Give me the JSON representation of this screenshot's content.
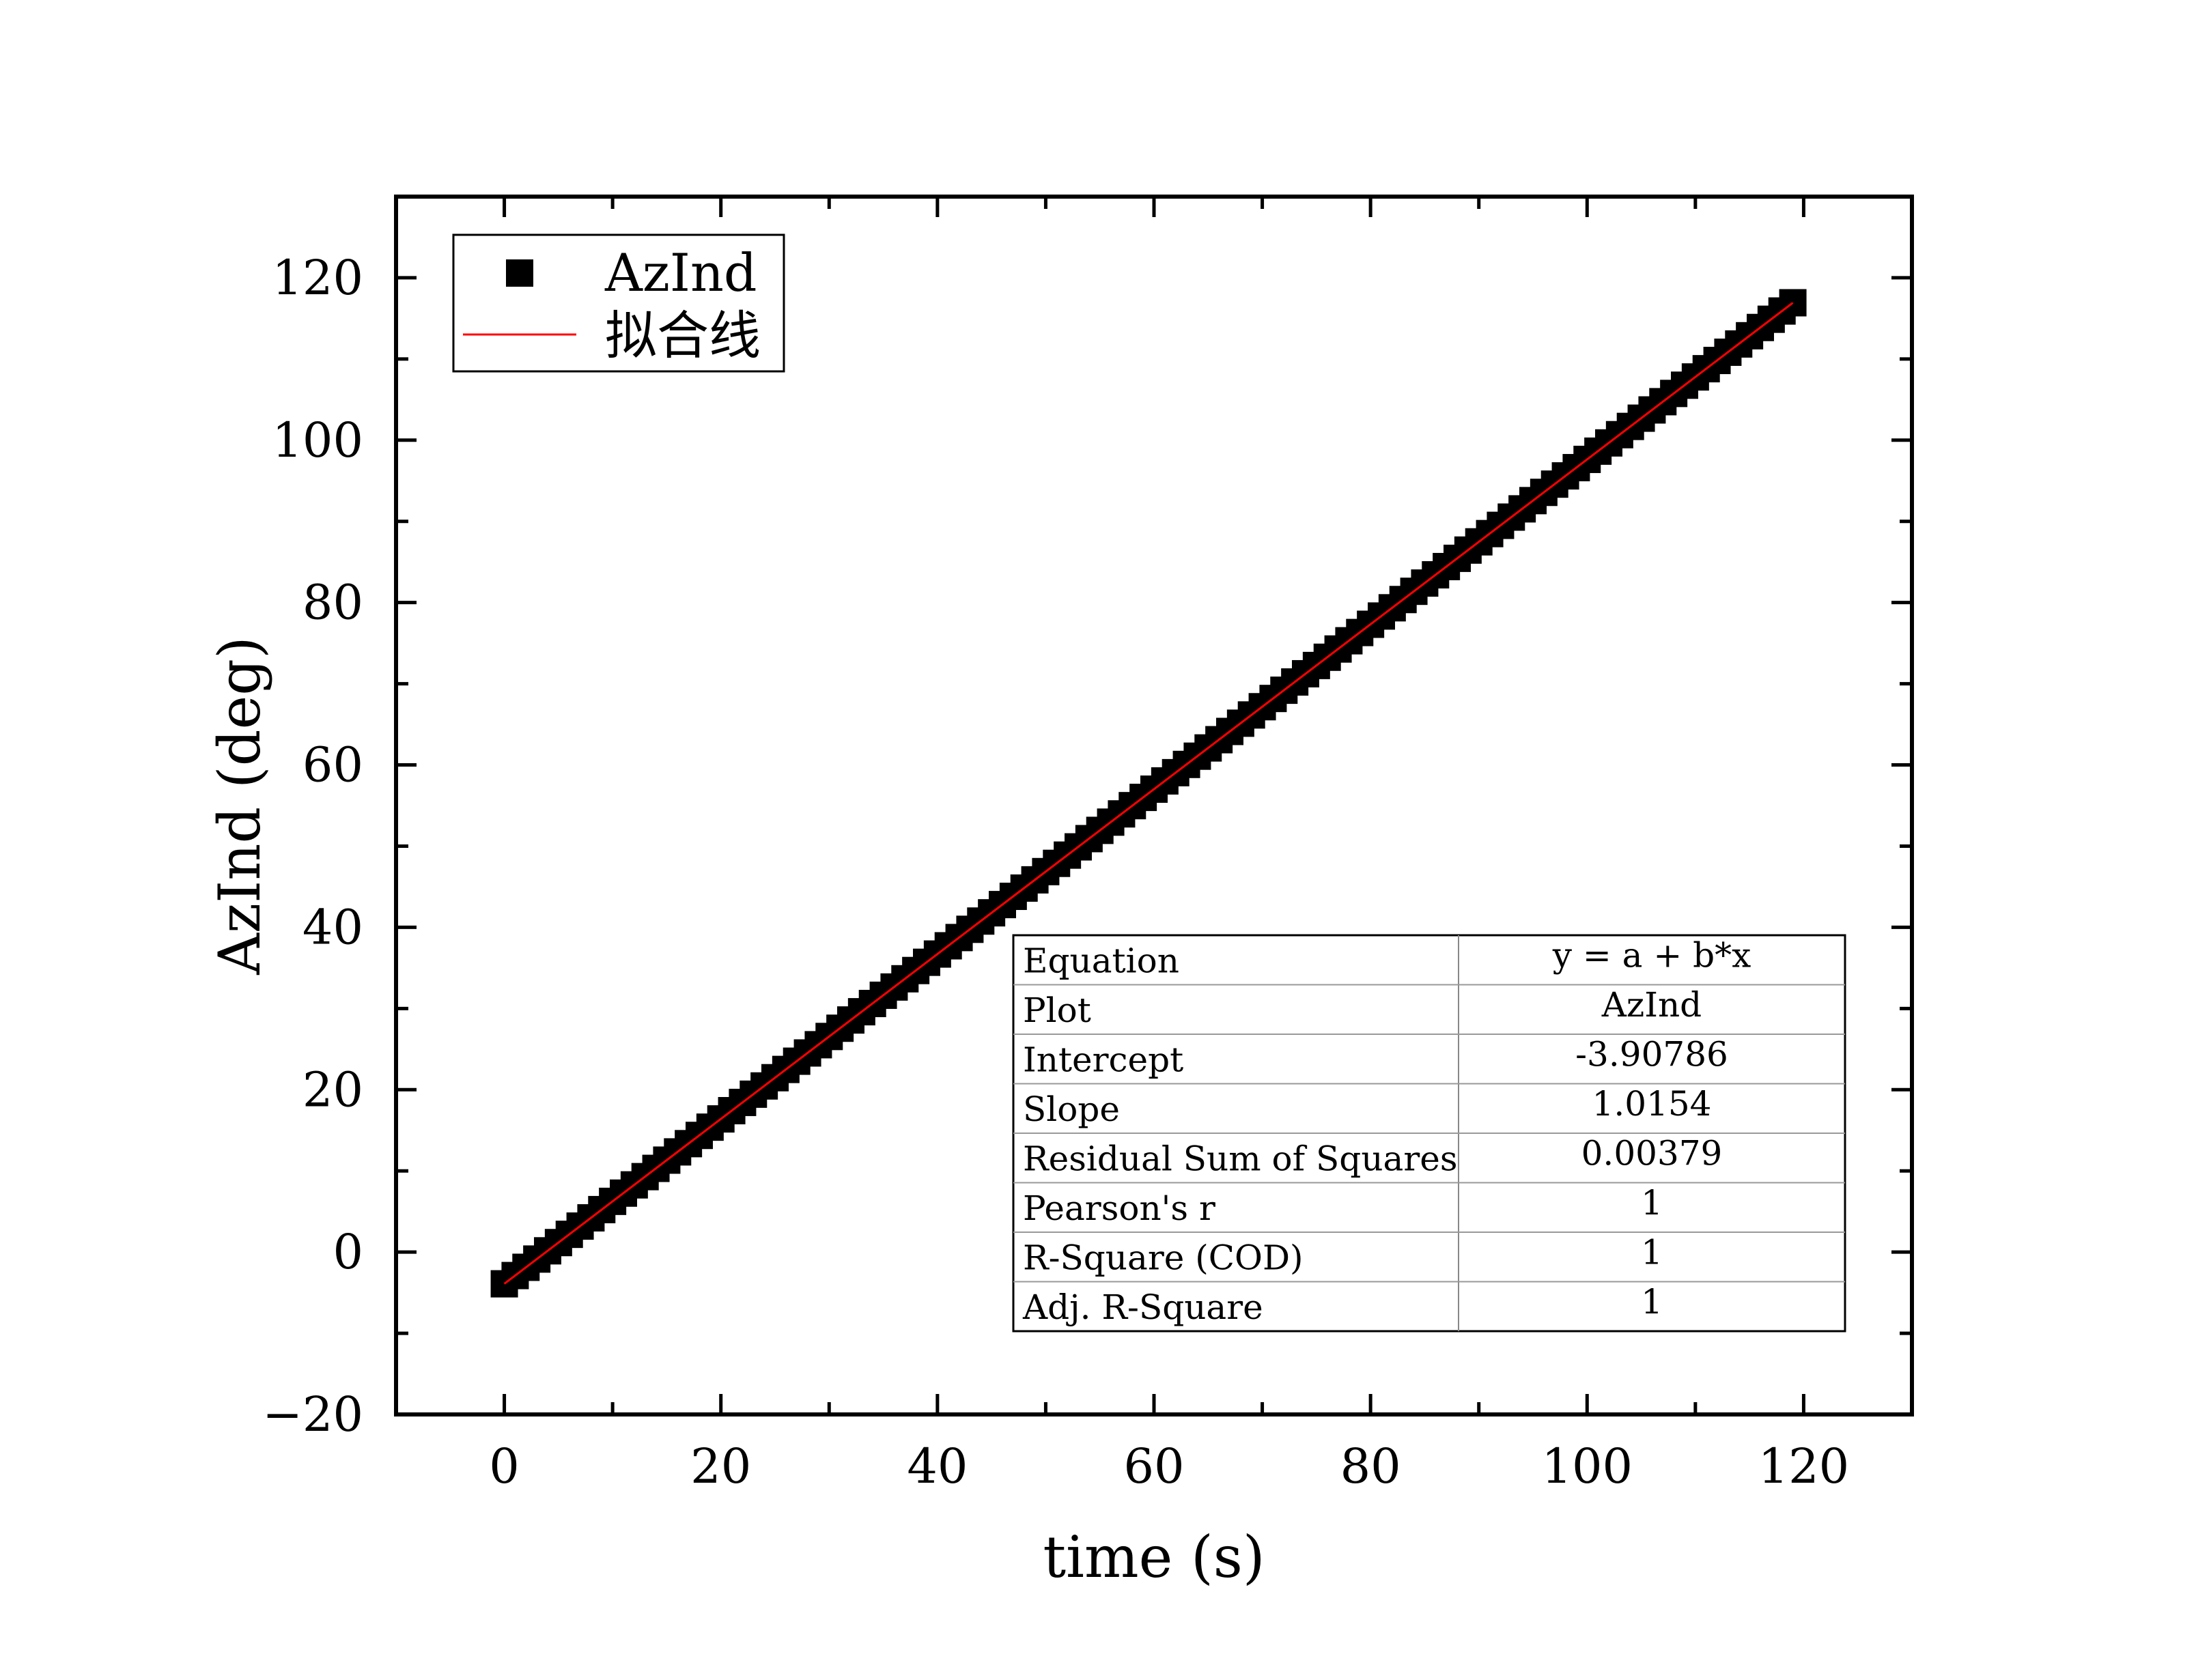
{
  "chart_data": {
    "type": "scatter",
    "xlabel": "time (s)",
    "ylabel": "AzInd (deg)",
    "xlim": [
      -10,
      130
    ],
    "ylim": [
      -20,
      130
    ],
    "xticks": [
      0,
      20,
      40,
      60,
      80,
      100,
      120
    ],
    "yticks": [
      -20,
      0,
      20,
      40,
      60,
      80,
      100,
      120
    ],
    "x_tick_labels": [
      "0",
      "20",
      "40",
      "60",
      "80",
      "100",
      "120"
    ],
    "y_tick_labels": [
      "−20",
      "0",
      "20",
      "40",
      "60",
      "80",
      "100",
      "120"
    ],
    "x_minor_step": 10,
    "y_minor_step": 10,
    "grid": false,
    "legend_position": "top-left",
    "series": [
      {
        "name": "AzInd",
        "kind": "scatter",
        "marker": "square",
        "color": "#000000",
        "x_start": 0,
        "x_end": 119,
        "x_step": 1,
        "y_formula": "y = -3.90786 + 1.0154*x"
      },
      {
        "name": "拟合线",
        "kind": "line",
        "color": "#ff0000",
        "x": [
          0,
          119
        ],
        "y": [
          -3.90786,
          116.92474
        ]
      }
    ],
    "fit_table": {
      "rows": [
        {
          "label": "Equation",
          "value": "y = a + b*x"
        },
        {
          "label": "Plot",
          "value": "AzInd"
        },
        {
          "label": "Intercept",
          "value": "-3.90786"
        },
        {
          "label": "Slope",
          "value": "1.0154"
        },
        {
          "label": "Residual Sum of Squares",
          "value": "0.00379"
        },
        {
          "label": "Pearson's r",
          "value": "1"
        },
        {
          "label": "R-Square (COD)",
          "value": "1"
        },
        {
          "label": "Adj. R-Square",
          "value": "1"
        }
      ]
    }
  }
}
